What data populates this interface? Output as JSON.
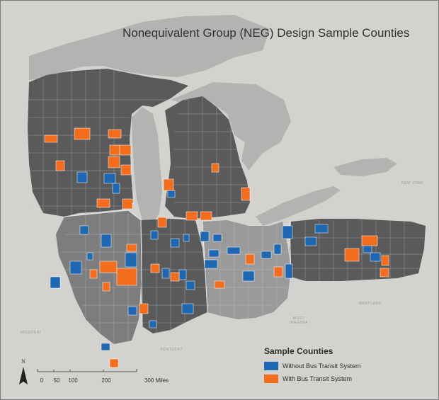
{
  "title": "Nonequivalent Group (NEG) Design Sample Counties",
  "legend": {
    "title": "Sample Counties",
    "items": [
      {
        "label": "Without Bus Transit System",
        "color": "#1f67b0"
      },
      {
        "label": "With Bus Transit System",
        "color": "#f26d1e"
      }
    ]
  },
  "north_arrow": {
    "label": "N"
  },
  "scale_bar": {
    "ticks": [
      "0",
      "50",
      "100",
      "200",
      "300 Miles"
    ]
  },
  "place_labels": {
    "new_york": "NEW YORK",
    "maryland": "MARYLAND",
    "west_virginia": "WEST VIRGINIA",
    "kentucky": "KENTUCKY",
    "missouri": "MISSOURI"
  },
  "colors": {
    "background": "#d4d2cf",
    "water": "#b5b3b1",
    "state_dark": "#5a5a5a",
    "state_mid": "#7d7d7d",
    "state_light": "#9a9a9a",
    "county_line": "#c9c9c9"
  }
}
